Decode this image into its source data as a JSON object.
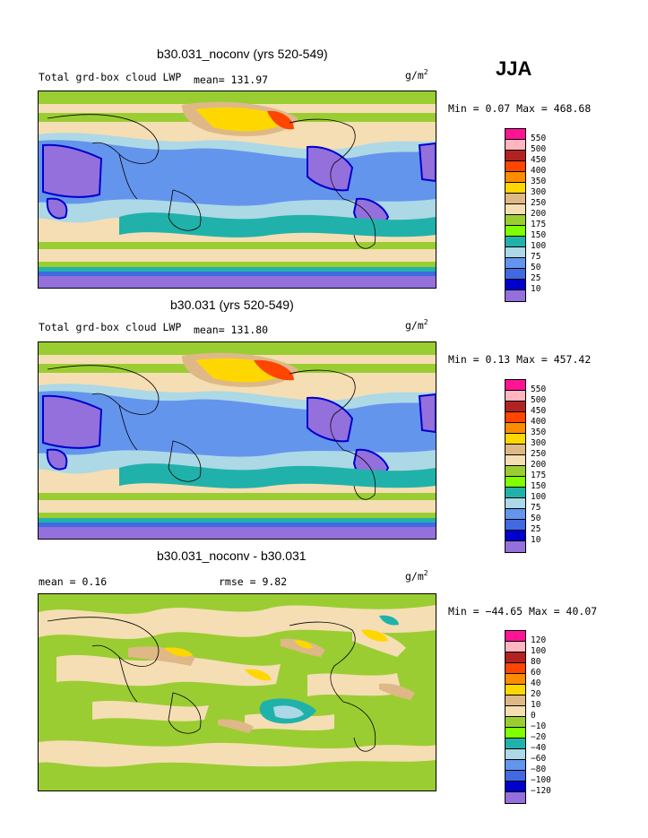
{
  "season": "JJA",
  "unit_base": "g/m",
  "unit_exp": "2",
  "panels": [
    {
      "title": "b30.031_noconv (yrs 520-549)",
      "variable": "Total grd-box cloud LWP",
      "stat_text": "mean= 131.97",
      "minmax": "Min =   0.07 Max = 468.68",
      "legend": [
        "550",
        "500",
        "450",
        "400",
        "350",
        "300",
        "250",
        "200",
        "175",
        "150",
        "100",
        "75",
        "50",
        "25",
        "10"
      ],
      "legend_colors": [
        "#ff1493",
        "#ffb6c1",
        "#b22222",
        "#ff4500",
        "#ff8c00",
        "#ffd700",
        "#deb887",
        "#f5deb3",
        "#9acd32",
        "#7fff00",
        "#20b2aa",
        "#add8e6",
        "#6495ed",
        "#4169e1",
        "#0000cd",
        "#9370db"
      ]
    },
    {
      "title": "b30.031 (yrs 520-549)",
      "variable": "Total grd-box cloud LWP",
      "stat_text": "mean= 131.80",
      "minmax": "Min =   0.13 Max = 457.42",
      "legend": [
        "550",
        "500",
        "450",
        "400",
        "350",
        "300",
        "250",
        "200",
        "175",
        "150",
        "100",
        "75",
        "50",
        "25",
        "10"
      ],
      "legend_colors": [
        "#ff1493",
        "#ffb6c1",
        "#b22222",
        "#ff4500",
        "#ff8c00",
        "#ffd700",
        "#deb887",
        "#f5deb3",
        "#9acd32",
        "#7fff00",
        "#20b2aa",
        "#add8e6",
        "#6495ed",
        "#4169e1",
        "#0000cd",
        "#9370db"
      ]
    },
    {
      "title": "b30.031_noconv - b30.031",
      "mean_text": "mean =   0.16",
      "rmse_text": "rmse =   9.82",
      "minmax": "Min = −44.65 Max =  40.07",
      "legend": [
        "120",
        "100",
        "80",
        "60",
        "40",
        "20",
        "10",
        "0",
        "−10",
        "−20",
        "−40",
        "−60",
        "−80",
        "−100",
        "−120"
      ],
      "legend_colors": [
        "#ff1493",
        "#ffb6c1",
        "#b22222",
        "#ff4500",
        "#ff8c00",
        "#ffd700",
        "#deb887",
        "#f5deb3",
        "#9acd32",
        "#7fff00",
        "#20b2aa",
        "#add8e6",
        "#6495ed",
        "#4169e1",
        "#0000cd",
        "#9370db"
      ]
    }
  ]
}
